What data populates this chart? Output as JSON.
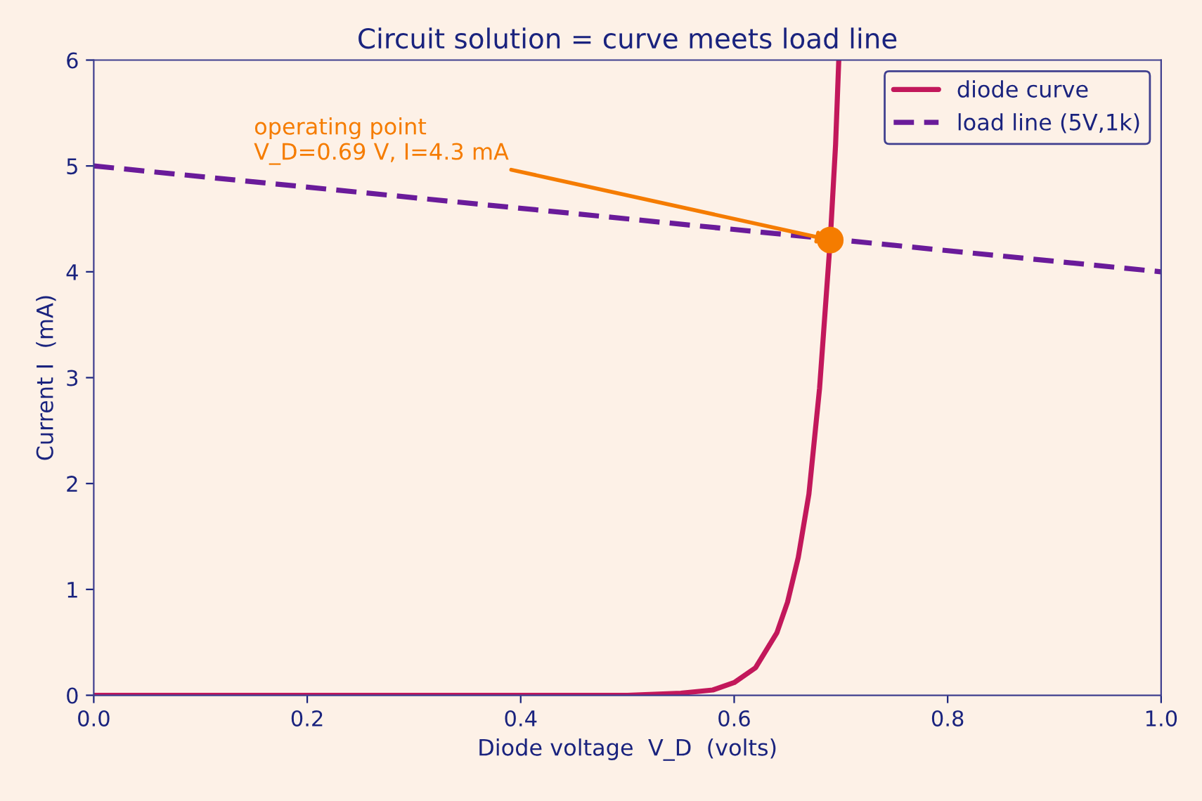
{
  "chart_data": {
    "type": "line",
    "title": "Circuit solution = curve meets load line",
    "xlabel": "Diode voltage  V_D  (volts)",
    "ylabel": "Current I  (mA)",
    "xlim": [
      0.0,
      1.0
    ],
    "xticks": [
      {
        "value": 0.0,
        "label": "0.0"
      },
      0.2,
      0.4,
      0.6,
      0.8,
      {
        "value": 1.0,
        "label": "1.0"
      }
    ],
    "ylim": [
      0,
      6
    ],
    "yticks": [
      0,
      1,
      2,
      3,
      4,
      5,
      6
    ],
    "grid": false,
    "legend": "top right",
    "series": [
      {
        "name": "diode curve",
        "color": "#c2185b",
        "line_style": "solid",
        "x": [
          0.0,
          0.2,
          0.4,
          0.5,
          0.55,
          0.58,
          0.6,
          0.62,
          0.64,
          0.65,
          0.66,
          0.67,
          0.68,
          0.69,
          0.695,
          0.698
        ],
        "values": [
          0.0,
          0.0,
          0.0,
          0.0,
          0.02,
          0.05,
          0.12,
          0.26,
          0.59,
          0.88,
          1.3,
          1.9,
          2.9,
          4.3,
          5.2,
          6.0
        ]
      },
      {
        "name": "load line (5V,1k)",
        "color": "#6a1b9a",
        "line_style": "dashed",
        "x": [
          0.0,
          1.0
        ],
        "values": [
          5.0,
          4.0
        ]
      },
      {
        "type": "scatter",
        "color": "#f57c00",
        "marker": "circle",
        "x": [
          0.69
        ],
        "values": [
          4.3
        ]
      }
    ],
    "annotations": [
      {
        "text": "operating point\nV_D=0.69 V, I=4.3 mA",
        "x": 0.69,
        "y": 4.3
      }
    ]
  }
}
